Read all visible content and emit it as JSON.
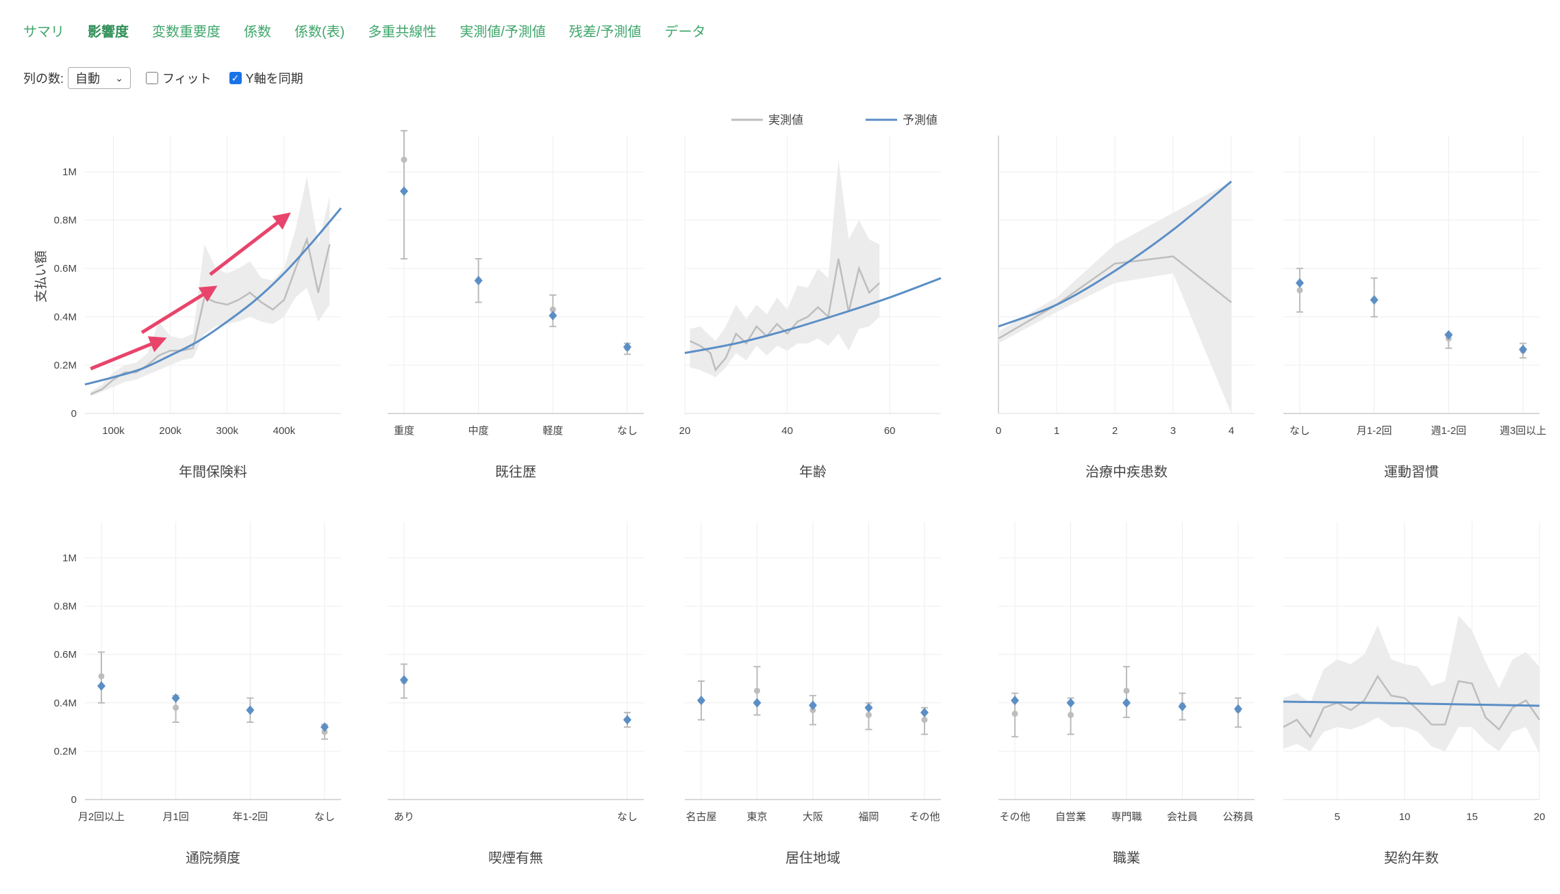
{
  "tabs": [
    {
      "label": "サマリ",
      "active": false
    },
    {
      "label": "影響度",
      "active": true
    },
    {
      "label": "変数重要度",
      "active": false
    },
    {
      "label": "係数",
      "active": false
    },
    {
      "label": "係数(表)",
      "active": false
    },
    {
      "label": "多重共線性",
      "active": false
    },
    {
      "label": "実測値/予測値",
      "active": false
    },
    {
      "label": "残差/予測値",
      "active": false
    },
    {
      "label": "データ",
      "active": false
    }
  ],
  "controls": {
    "columns_label": "列の数:",
    "columns_value": "自動",
    "fit_label": "フィット",
    "fit_checked": false,
    "sync_label": "Y軸を同期",
    "sync_checked": true
  },
  "colors": {
    "actual": "#bdbdbd",
    "predicted": "#5b8ec5",
    "band": "#ececec",
    "arrow": "#e8446b",
    "tab": "#3fa66b"
  },
  "chart_data": {
    "legend": [
      "実測値",
      "予測値"
    ],
    "ylabel": "支払い額",
    "ylim": [
      0,
      1150000
    ],
    "yticks": [
      {
        "v": 0,
        "l": "0"
      },
      {
        "v": 200000,
        "l": "0.2M"
      },
      {
        "v": 400000,
        "l": "0.4M"
      },
      {
        "v": 600000,
        "l": "0.6M"
      },
      {
        "v": 800000,
        "l": "0.8M"
      },
      {
        "v": 1000000,
        "l": "1M"
      }
    ],
    "panels": [
      {
        "title": "年間保険料",
        "type": "line",
        "xlim": [
          50000,
          500000
        ],
        "xticks": [
          {
            "v": 100000,
            "l": "100k"
          },
          {
            "v": 200000,
            "l": "200k"
          },
          {
            "v": 300000,
            "l": "300k"
          },
          {
            "v": 400000,
            "l": "400k"
          }
        ],
        "actual": [
          [
            60000,
            80000
          ],
          [
            80000,
            100000
          ],
          [
            100000,
            140000
          ],
          [
            120000,
            170000
          ],
          [
            140000,
            170000
          ],
          [
            160000,
            200000
          ],
          [
            180000,
            240000
          ],
          [
            200000,
            260000
          ],
          [
            220000,
            260000
          ],
          [
            240000,
            270000
          ],
          [
            260000,
            480000
          ],
          [
            280000,
            460000
          ],
          [
            300000,
            450000
          ],
          [
            320000,
            470000
          ],
          [
            340000,
            500000
          ],
          [
            360000,
            460000
          ],
          [
            380000,
            430000
          ],
          [
            400000,
            470000
          ],
          [
            420000,
            600000
          ],
          [
            440000,
            720000
          ],
          [
            460000,
            500000
          ],
          [
            480000,
            700000
          ]
        ],
        "band": [
          [
            60000,
            70000,
            90000
          ],
          [
            80000,
            90000,
            120000
          ],
          [
            100000,
            110000,
            170000
          ],
          [
            120000,
            130000,
            200000
          ],
          [
            140000,
            140000,
            210000
          ],
          [
            160000,
            160000,
            250000
          ],
          [
            180000,
            180000,
            380000
          ],
          [
            200000,
            200000,
            320000
          ],
          [
            220000,
            220000,
            310000
          ],
          [
            240000,
            230000,
            330000
          ],
          [
            260000,
            330000,
            700000
          ],
          [
            280000,
            360000,
            600000
          ],
          [
            300000,
            370000,
            580000
          ],
          [
            320000,
            380000,
            600000
          ],
          [
            340000,
            400000,
            630000
          ],
          [
            360000,
            380000,
            560000
          ],
          [
            380000,
            370000,
            550000
          ],
          [
            400000,
            400000,
            600000
          ],
          [
            420000,
            480000,
            760000
          ],
          [
            440000,
            520000,
            980000
          ],
          [
            460000,
            380000,
            700000
          ],
          [
            480000,
            450000,
            900000
          ]
        ],
        "predicted": [
          [
            50000,
            120000
          ],
          [
            100000,
            150000
          ],
          [
            150000,
            185000
          ],
          [
            200000,
            240000
          ],
          [
            250000,
            300000
          ],
          [
            300000,
            380000
          ],
          [
            350000,
            470000
          ],
          [
            400000,
            580000
          ],
          [
            450000,
            710000
          ],
          [
            500000,
            850000
          ]
        ],
        "arrows": [
          [
            [
              60000,
              185000
            ],
            [
              180000,
              300000
            ]
          ],
          [
            [
              150000,
              335000
            ],
            [
              270000,
              510000
            ]
          ],
          [
            [
              270000,
              575000
            ],
            [
              400000,
              810000
            ]
          ]
        ]
      },
      {
        "title": "既往歴",
        "type": "cat",
        "categories": [
          "重度",
          "中度",
          "軽度",
          "なし"
        ],
        "actual": [
          1050000,
          550000,
          430000,
          270000
        ],
        "predicted": [
          920000,
          550000,
          405000,
          275000
        ],
        "err_low": [
          640000,
          460000,
          360000,
          245000
        ],
        "err_high": [
          1170000,
          640000,
          490000,
          290000
        ]
      },
      {
        "title": "年齢",
        "type": "line",
        "xlim": [
          20,
          70
        ],
        "xticks": [
          {
            "v": 20,
            "l": "20"
          },
          {
            "v": 40,
            "l": "40"
          },
          {
            "v": 60,
            "l": "60"
          }
        ],
        "actual": [
          [
            21,
            300000
          ],
          [
            23,
            280000
          ],
          [
            25,
            250000
          ],
          [
            26,
            180000
          ],
          [
            28,
            230000
          ],
          [
            30,
            330000
          ],
          [
            32,
            290000
          ],
          [
            34,
            360000
          ],
          [
            36,
            320000
          ],
          [
            38,
            370000
          ],
          [
            40,
            330000
          ],
          [
            42,
            380000
          ],
          [
            44,
            400000
          ],
          [
            46,
            440000
          ],
          [
            48,
            400000
          ],
          [
            50,
            640000
          ],
          [
            52,
            420000
          ],
          [
            54,
            600000
          ],
          [
            56,
            500000
          ],
          [
            58,
            540000
          ]
        ],
        "band": [
          [
            21,
            190000,
            350000
          ],
          [
            23,
            180000,
            360000
          ],
          [
            25,
            160000,
            320000
          ],
          [
            26,
            150000,
            300000
          ],
          [
            28,
            190000,
            360000
          ],
          [
            30,
            250000,
            450000
          ],
          [
            32,
            220000,
            390000
          ],
          [
            34,
            280000,
            450000
          ],
          [
            36,
            240000,
            410000
          ],
          [
            38,
            280000,
            480000
          ],
          [
            40,
            260000,
            430000
          ],
          [
            42,
            290000,
            530000
          ],
          [
            44,
            290000,
            520000
          ],
          [
            46,
            310000,
            600000
          ],
          [
            48,
            280000,
            560000
          ],
          [
            50,
            330000,
            1050000
          ],
          [
            52,
            260000,
            720000
          ],
          [
            54,
            350000,
            800000
          ],
          [
            56,
            360000,
            720000
          ],
          [
            58,
            400000,
            700000
          ]
        ],
        "predicted": [
          [
            20,
            250000
          ],
          [
            30,
            290000
          ],
          [
            40,
            345000
          ],
          [
            50,
            410000
          ],
          [
            60,
            480000
          ],
          [
            70,
            560000
          ]
        ]
      },
      {
        "title": "治療中疾患数",
        "type": "line",
        "xlim": [
          0,
          4.4
        ],
        "xticks": [
          {
            "v": 0,
            "l": "0"
          },
          {
            "v": 1,
            "l": "1"
          },
          {
            "v": 2,
            "l": "2"
          },
          {
            "v": 3,
            "l": "3"
          },
          {
            "v": 4,
            "l": "4"
          }
        ],
        "actual": [
          [
            0,
            310000
          ],
          [
            1,
            450000
          ],
          [
            2,
            620000
          ],
          [
            3,
            650000
          ],
          [
            4,
            460000
          ]
        ],
        "band": [
          [
            0,
            290000,
            340000
          ],
          [
            1,
            420000,
            480000
          ],
          [
            2,
            540000,
            700000
          ],
          [
            3,
            580000,
            830000
          ],
          [
            4,
            0,
            960000
          ]
        ],
        "predicted": [
          [
            0,
            360000
          ],
          [
            1,
            450000
          ],
          [
            2,
            590000
          ],
          [
            3,
            760000
          ],
          [
            4,
            960000
          ]
        ]
      },
      {
        "title": "運動習慣",
        "type": "cat",
        "categories": [
          "なし",
          "月1-2回",
          "週1-2回",
          "週3回以上"
        ],
        "actual": [
          510000,
          470000,
          310000,
          260000
        ],
        "predicted": [
          540000,
          470000,
          325000,
          265000
        ],
        "err_low": [
          420000,
          400000,
          270000,
          230000
        ],
        "err_high": [
          600000,
          560000,
          330000,
          290000
        ]
      },
      {
        "title": "通院頻度",
        "type": "cat",
        "categories": [
          "月2回以上",
          "月1回",
          "年1-2回",
          "なし"
        ],
        "actual": [
          510000,
          380000,
          370000,
          280000
        ],
        "predicted": [
          470000,
          420000,
          370000,
          300000
        ],
        "err_low": [
          400000,
          320000,
          320000,
          250000
        ],
        "err_high": [
          610000,
          430000,
          420000,
          310000
        ]
      },
      {
        "title": "喫煙有無",
        "type": "cat",
        "categories": [
          "あり",
          "なし"
        ],
        "actual": [
          490000,
          330000
        ],
        "predicted": [
          495000,
          330000
        ],
        "err_low": [
          420000,
          300000
        ],
        "err_high": [
          560000,
          360000
        ]
      },
      {
        "title": "居住地域",
        "type": "cat",
        "categories": [
          "名古屋",
          "東京",
          "大阪",
          "福岡",
          "その他"
        ],
        "actual": [
          410000,
          450000,
          370000,
          350000,
          330000
        ],
        "predicted": [
          410000,
          400000,
          390000,
          380000,
          360000
        ],
        "err_low": [
          330000,
          350000,
          310000,
          290000,
          270000
        ],
        "err_high": [
          490000,
          550000,
          430000,
          400000,
          380000
        ]
      },
      {
        "title": "職業",
        "type": "cat",
        "categories": [
          "その他",
          "自営業",
          "専門職",
          "会社員",
          "公務員"
        ],
        "actual": [
          355000,
          350000,
          450000,
          390000,
          370000
        ],
        "predicted": [
          410000,
          400000,
          400000,
          385000,
          375000
        ],
        "err_low": [
          260000,
          270000,
          340000,
          330000,
          300000
        ],
        "err_high": [
          440000,
          420000,
          550000,
          440000,
          420000
        ]
      },
      {
        "title": "契約年数",
        "type": "line",
        "xlim": [
          1,
          20
        ],
        "xticks": [
          {
            "v": 5,
            "l": "5"
          },
          {
            "v": 10,
            "l": "10"
          },
          {
            "v": 15,
            "l": "15"
          },
          {
            "v": 20,
            "l": "20"
          }
        ],
        "actual": [
          [
            1,
            300000
          ],
          [
            2,
            330000
          ],
          [
            3,
            260000
          ],
          [
            4,
            380000
          ],
          [
            5,
            400000
          ],
          [
            6,
            370000
          ],
          [
            7,
            410000
          ],
          [
            8,
            510000
          ],
          [
            9,
            430000
          ],
          [
            10,
            420000
          ],
          [
            11,
            370000
          ],
          [
            12,
            310000
          ],
          [
            13,
            310000
          ],
          [
            14,
            490000
          ],
          [
            15,
            480000
          ],
          [
            16,
            340000
          ],
          [
            17,
            290000
          ],
          [
            18,
            380000
          ],
          [
            19,
            410000
          ],
          [
            20,
            330000
          ]
        ],
        "band": [
          [
            1,
            210000,
            420000
          ],
          [
            2,
            230000,
            440000
          ],
          [
            3,
            200000,
            400000
          ],
          [
            4,
            280000,
            540000
          ],
          [
            5,
            300000,
            580000
          ],
          [
            6,
            290000,
            560000
          ],
          [
            7,
            310000,
            600000
          ],
          [
            8,
            340000,
            720000
          ],
          [
            9,
            300000,
            580000
          ],
          [
            10,
            300000,
            560000
          ],
          [
            11,
            280000,
            550000
          ],
          [
            12,
            220000,
            470000
          ],
          [
            13,
            200000,
            490000
          ],
          [
            14,
            300000,
            760000
          ],
          [
            15,
            300000,
            700000
          ],
          [
            16,
            240000,
            570000
          ],
          [
            17,
            200000,
            460000
          ],
          [
            18,
            280000,
            580000
          ],
          [
            19,
            300000,
            610000
          ],
          [
            20,
            190000,
            550000
          ]
        ],
        "predicted": [
          [
            1,
            405000
          ],
          [
            5,
            402000
          ],
          [
            10,
            398000
          ],
          [
            15,
            393000
          ],
          [
            20,
            388000
          ]
        ]
      }
    ]
  }
}
